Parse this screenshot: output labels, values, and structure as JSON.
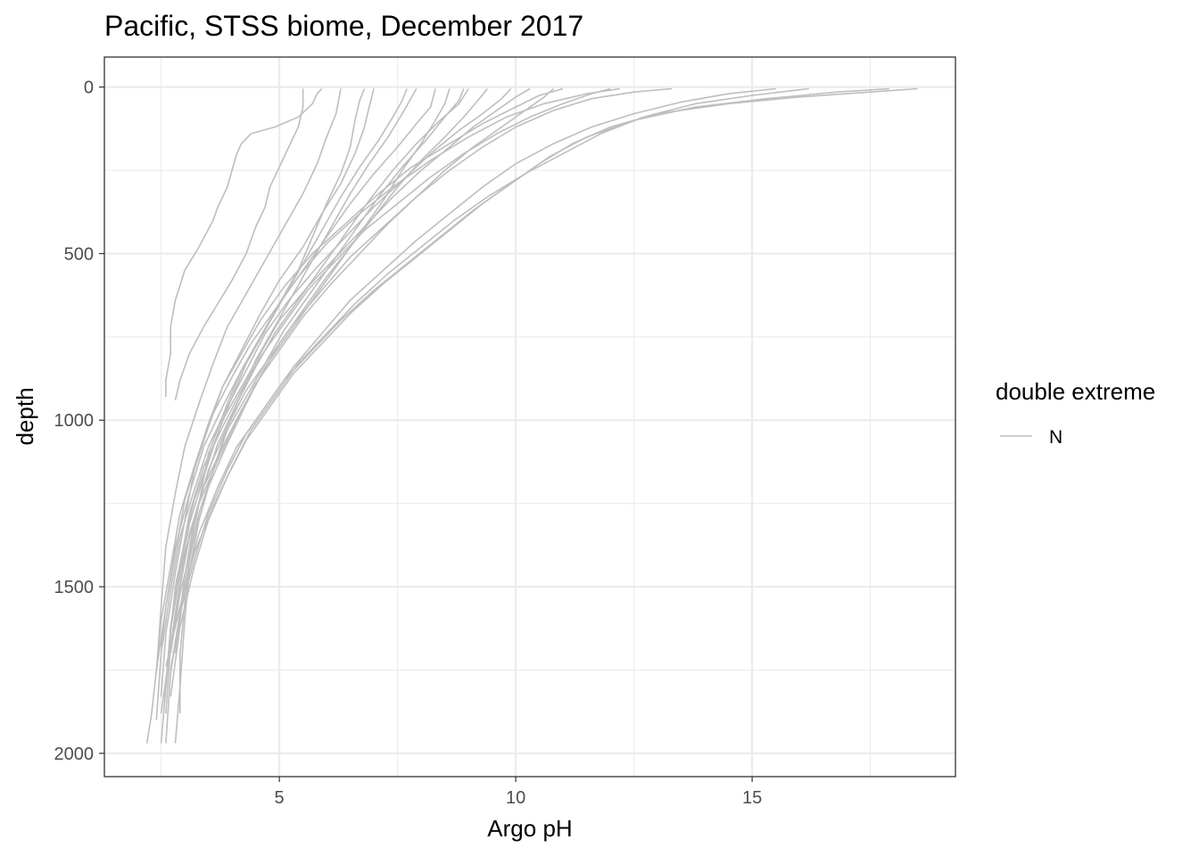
{
  "chart_data": {
    "type": "line",
    "title": "Pacific, STSS biome, December 2017",
    "xlabel": "Argo pH",
    "ylabel": "depth",
    "xlim": [
      1.3,
      19.3
    ],
    "ylim": [
      2070,
      -90
    ],
    "y_reversed": true,
    "x_ticks": [
      5,
      10,
      15
    ],
    "x_tick_labels": [
      "5",
      "10",
      "15"
    ],
    "x_minor": [
      2.5,
      7.5,
      12.5,
      17.5
    ],
    "y_ticks": [
      0,
      500,
      1000,
      1500,
      2000
    ],
    "y_tick_labels": [
      "0",
      "500",
      "1000",
      "1500",
      "2000"
    ],
    "y_minor": [
      250,
      750,
      1250,
      1750
    ],
    "grid": true,
    "legend": {
      "title": "double extreme",
      "position": "right",
      "entries": [
        {
          "label": "N",
          "color": "#bebebe"
        }
      ]
    },
    "colors": {
      "line": "#bebebe",
      "panel_border": "#333333",
      "grid": "#ebebeb"
    },
    "series": [
      {
        "name": "N",
        "x": [
          5.9,
          5.8,
          5.7,
          5.4,
          4.9,
          4.4,
          4.2,
          4.1,
          4.0,
          3.9,
          3.7,
          3.6,
          3.3,
          3.0,
          2.8,
          2.7,
          2.7,
          2.6,
          2.6
        ],
        "y": [
          5,
          20,
          50,
          90,
          120,
          140,
          170,
          200,
          250,
          300,
          360,
          400,
          480,
          550,
          640,
          720,
          800,
          880,
          930
        ]
      },
      {
        "name": "N",
        "x": [
          5.5,
          5.5,
          5.4,
          5.2,
          5.0,
          4.8,
          4.7,
          4.5,
          4.3,
          4.0,
          3.7,
          3.4,
          3.1,
          2.9,
          2.8
        ],
        "y": [
          5,
          60,
          120,
          180,
          240,
          300,
          360,
          420,
          500,
          580,
          650,
          720,
          800,
          880,
          940
        ]
      },
      {
        "name": "N",
        "x": [
          6.8,
          6.7,
          6.6,
          6.5,
          6.3,
          6.0,
          5.7,
          5.4,
          5.0,
          4.6,
          4.2,
          3.9,
          3.5,
          3.3,
          3.1,
          3.0,
          2.9,
          2.9
        ],
        "y": [
          5,
          40,
          100,
          180,
          260,
          350,
          450,
          550,
          650,
          750,
          850,
          950,
          1100,
          1250,
          1400,
          1550,
          1700,
          1880
        ]
      },
      {
        "name": "N",
        "x": [
          7.9,
          7.8,
          7.6,
          7.3,
          6.9,
          6.5,
          6.1,
          5.7,
          5.3,
          4.9,
          4.5,
          4.2,
          3.9,
          3.6,
          3.3,
          3.1,
          3.0,
          2.9,
          2.8
        ],
        "y": [
          5,
          30,
          80,
          150,
          230,
          320,
          420,
          520,
          620,
          720,
          820,
          920,
          1020,
          1150,
          1300,
          1450,
          1600,
          1800,
          1970
        ]
      },
      {
        "name": "N",
        "x": [
          8.9,
          8.8,
          8.5,
          8.1,
          7.6,
          7.1,
          6.6,
          6.1,
          5.6,
          5.1,
          4.7,
          4.3,
          3.9,
          3.6,
          3.3,
          3.1,
          2.9,
          2.7,
          2.6
        ],
        "y": [
          5,
          40,
          90,
          160,
          240,
          330,
          430,
          530,
          630,
          730,
          830,
          930,
          1030,
          1150,
          1280,
          1420,
          1580,
          1760,
          1970
        ]
      },
      {
        "name": "N",
        "x": [
          10.3,
          10.0,
          9.6,
          9.1,
          8.6,
          8.0,
          7.4,
          6.8,
          6.2,
          5.6,
          5.0,
          4.6,
          4.2,
          3.8,
          3.5,
          3.2,
          3.0,
          2.8,
          2.7,
          2.6,
          2.5
        ],
        "y": [
          5,
          30,
          70,
          120,
          180,
          250,
          330,
          420,
          510,
          600,
          700,
          800,
          900,
          1000,
          1120,
          1240,
          1360,
          1500,
          1640,
          1800,
          1970
        ]
      },
      {
        "name": "N",
        "x": [
          11.0,
          10.5,
          10.0,
          9.3,
          8.6,
          7.8,
          7.1,
          6.4,
          5.7,
          5.1,
          4.6,
          4.2,
          3.8,
          3.5,
          3.2,
          3.0,
          2.8,
          2.6,
          2.5
        ],
        "y": [
          5,
          25,
          60,
          110,
          170,
          240,
          320,
          410,
          500,
          600,
          700,
          800,
          900,
          1020,
          1150,
          1300,
          1460,
          1640,
          1830
        ]
      },
      {
        "name": "N",
        "x": [
          12.2,
          11.5,
          10.6,
          9.8,
          9.0,
          8.2,
          7.4,
          6.7,
          6.0,
          5.4,
          4.9,
          4.4,
          4.0,
          3.6,
          3.3,
          3.0,
          2.8,
          2.6,
          2.5
        ],
        "y": [
          5,
          20,
          50,
          90,
          150,
          220,
          300,
          380,
          470,
          570,
          670,
          770,
          870,
          980,
          1100,
          1240,
          1400,
          1560,
          1680
        ]
      },
      {
        "name": "N",
        "x": [
          13.3,
          12.5,
          11.6,
          10.8,
          10.0,
          9.3,
          8.6,
          7.9,
          7.2,
          6.5,
          5.9,
          5.3,
          4.8,
          4.3,
          3.9,
          3.5,
          3.2,
          3.0,
          2.8
        ],
        "y": [
          5,
          15,
          35,
          70,
          120,
          180,
          250,
          330,
          420,
          510,
          610,
          710,
          810,
          910,
          1020,
          1150,
          1300,
          1470,
          1680
        ]
      },
      {
        "name": "N",
        "x": [
          15.5,
          14.5,
          13.5,
          12.5,
          11.6,
          10.8,
          10.0,
          9.3,
          8.6,
          7.9,
          7.2,
          6.5,
          5.9,
          5.3,
          4.8,
          4.3,
          3.9,
          3.5,
          3.2,
          2.9,
          2.7
        ],
        "y": [
          5,
          20,
          45,
          80,
          120,
          170,
          230,
          300,
          380,
          460,
          550,
          640,
          740,
          840,
          940,
          1040,
          1150,
          1280,
          1420,
          1580,
          1750
        ]
      },
      {
        "name": "N",
        "x": [
          18.5,
          17.5,
          16.0,
          14.5,
          13.0,
          12.0,
          11.2,
          10.5,
          9.8,
          9.1,
          8.4,
          7.7,
          7.0,
          6.3,
          5.7,
          5.1,
          4.6,
          4.1,
          3.7,
          3.3,
          3.0,
          2.8
        ],
        "y": [
          5,
          15,
          30,
          50,
          80,
          120,
          170,
          230,
          300,
          370,
          450,
          530,
          610,
          700,
          790,
          880,
          980,
          1080,
          1200,
          1340,
          1500,
          1700
        ]
      },
      {
        "name": "N",
        "x": [
          17.9,
          16.8,
          15.3,
          13.8,
          12.5,
          11.5,
          10.7,
          10.0,
          9.3,
          8.6,
          7.9,
          7.2,
          6.5,
          5.9,
          5.3,
          4.8,
          4.3,
          3.9,
          3.5,
          3.2,
          2.9,
          2.7
        ],
        "y": [
          5,
          15,
          35,
          60,
          100,
          150,
          210,
          280,
          350,
          430,
          510,
          590,
          680,
          770,
          860,
          960,
          1060,
          1170,
          1300,
          1440,
          1620,
          1830
        ]
      },
      {
        "name": "N",
        "x": [
          16.2,
          15.0,
          13.8,
          12.7,
          11.8,
          11.0,
          10.2,
          9.4,
          8.7,
          8.0,
          7.3,
          6.6,
          6.0,
          5.4,
          4.9,
          4.4,
          4.0,
          3.6,
          3.2,
          2.9,
          2.6
        ],
        "y": [
          5,
          25,
          50,
          90,
          140,
          200,
          260,
          330,
          400,
          480,
          560,
          650,
          740,
          830,
          930,
          1030,
          1140,
          1260,
          1400,
          1560,
          1740
        ]
      },
      {
        "name": "N",
        "x": [
          9.0,
          8.8,
          8.4,
          7.9,
          7.4,
          6.9,
          6.4,
          5.9,
          5.4,
          4.9,
          4.5,
          4.1,
          3.7,
          3.4,
          3.1,
          2.9,
          2.7,
          2.5
        ],
        "y": [
          5,
          50,
          100,
          170,
          250,
          340,
          440,
          540,
          640,
          740,
          840,
          950,
          1070,
          1200,
          1350,
          1500,
          1680,
          1880
        ]
      },
      {
        "name": "N",
        "x": [
          7.7,
          7.6,
          7.4,
          7.1,
          6.7,
          6.3,
          5.9,
          5.5,
          5.1,
          4.7,
          4.3,
          4.0,
          3.7,
          3.4,
          3.1,
          2.9,
          2.7,
          2.6
        ],
        "y": [
          5,
          40,
          90,
          160,
          240,
          330,
          430,
          530,
          630,
          730,
          830,
          930,
          1040,
          1170,
          1310,
          1460,
          1630,
          1800
        ]
      },
      {
        "name": "N",
        "x": [
          8.3,
          8.2,
          7.9,
          7.5,
          7.0,
          6.5,
          6.0,
          5.5,
          5.0,
          4.6,
          4.2,
          3.8,
          3.4,
          3.1,
          2.8,
          2.6,
          2.4
        ],
        "y": [
          5,
          60,
          110,
          180,
          260,
          350,
          450,
          550,
          650,
          750,
          850,
          960,
          1080,
          1220,
          1380,
          1560,
          1750
        ]
      },
      {
        "name": "N",
        "x": [
          6.3,
          6.2,
          6.0,
          5.8,
          5.5,
          5.1,
          4.7,
          4.3,
          3.9,
          3.6,
          3.3,
          3.0,
          2.8,
          2.6,
          2.5,
          2.4
        ],
        "y": [
          5,
          80,
          150,
          230,
          320,
          420,
          520,
          620,
          720,
          830,
          950,
          1080,
          1220,
          1380,
          1560,
          1760
        ]
      },
      {
        "name": "N",
        "x": [
          9.4,
          9.2,
          8.9,
          8.5,
          8.0,
          7.5,
          7.0,
          6.5,
          6.0,
          5.5,
          5.0,
          4.6,
          4.2,
          3.8,
          3.4,
          3.1,
          2.9,
          2.7,
          2.6
        ],
        "y": [
          5,
          40,
          90,
          150,
          220,
          300,
          390,
          480,
          570,
          670,
          770,
          870,
          970,
          1080,
          1200,
          1340,
          1500,
          1680,
          1880
        ]
      },
      {
        "name": "N",
        "x": [
          10.8,
          10.6,
          10.2,
          9.7,
          9.1,
          8.5,
          7.9,
          7.3,
          6.7,
          6.1,
          5.5,
          5.0,
          4.5,
          4.1,
          3.7,
          3.3,
          3.0,
          2.8,
          2.6
        ],
        "y": [
          5,
          30,
          70,
          120,
          180,
          250,
          330,
          410,
          500,
          590,
          690,
          790,
          890,
          1000,
          1120,
          1250,
          1400,
          1580,
          1780
        ]
      },
      {
        "name": "N",
        "x": [
          7.0,
          6.9,
          6.8,
          6.6,
          6.3,
          5.9,
          5.5,
          5.0,
          4.6,
          4.2,
          3.8,
          3.5,
          3.2,
          2.9,
          2.7,
          2.5,
          2.4,
          2.3,
          2.2
        ],
        "y": [
          5,
          60,
          120,
          200,
          290,
          380,
          480,
          580,
          680,
          790,
          900,
          1010,
          1140,
          1280,
          1440,
          1600,
          1750,
          1880,
          1970
        ]
      },
      {
        "name": "N",
        "x": [
          9.9,
          9.7,
          9.3,
          8.8,
          8.2,
          7.6,
          7.0,
          6.4,
          5.8,
          5.2,
          4.7,
          4.3,
          3.9,
          3.5,
          3.2,
          2.9,
          2.7,
          2.5,
          2.4
        ],
        "y": [
          5,
          35,
          80,
          130,
          200,
          280,
          360,
          450,
          540,
          640,
          740,
          850,
          960,
          1080,
          1210,
          1350,
          1510,
          1700,
          1900
        ]
      },
      {
        "name": "N",
        "x": [
          8.6,
          8.5,
          8.3,
          8.0,
          7.6,
          7.2,
          6.7,
          6.2,
          5.7,
          5.2,
          4.7,
          4.3,
          3.9,
          3.5,
          3.2,
          2.9,
          2.7
        ],
        "y": [
          5,
          50,
          100,
          170,
          250,
          340,
          440,
          540,
          640,
          740,
          840,
          950,
          1070,
          1200,
          1350,
          1520,
          1700
        ]
      },
      {
        "name": "N",
        "x": [
          12.0,
          11.6,
          11.0,
          10.3,
          9.6,
          8.9,
          8.2,
          7.5,
          6.8,
          6.2,
          5.6,
          5.1,
          4.6,
          4.2,
          3.8,
          3.4,
          3.1,
          2.9,
          2.7,
          2.6
        ],
        "y": [
          5,
          20,
          50,
          90,
          140,
          200,
          270,
          350,
          430,
          520,
          610,
          710,
          810,
          910,
          1020,
          1140,
          1280,
          1440,
          1620,
          1800
        ]
      }
    ]
  }
}
